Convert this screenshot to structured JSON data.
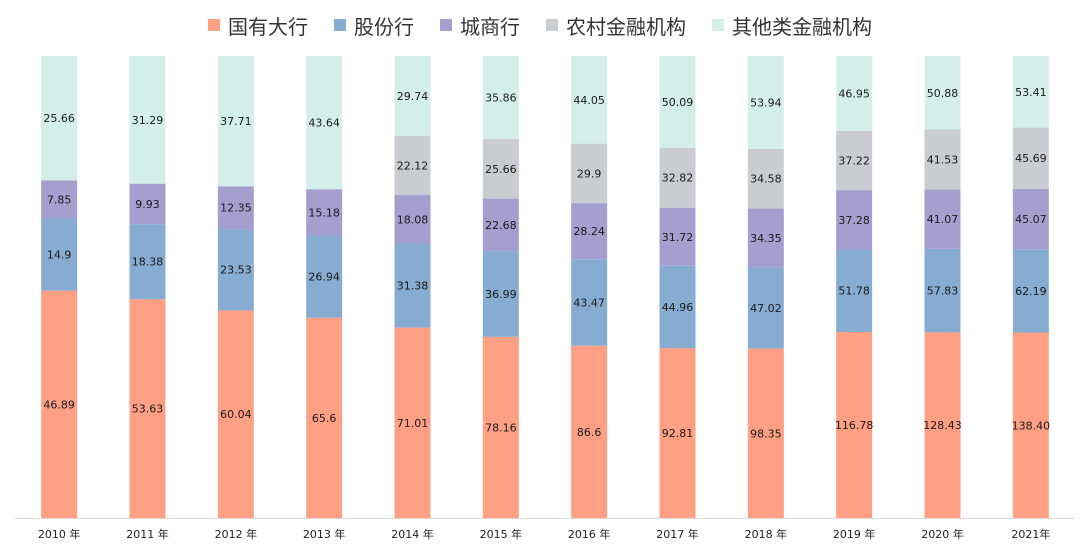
{
  "chart_data": {
    "type": "bar",
    "stacked": true,
    "legend_position": "top-center",
    "grid": false,
    "categories": [
      "2010 年",
      "2011 年",
      "2012 年",
      "2013 年",
      "2014 年",
      "2015 年",
      "2016 年",
      "2017 年",
      "2018 年",
      "2019 年",
      "2020 年",
      "2021年"
    ],
    "series": [
      {
        "name": "国有大行",
        "color": "#FF9F84",
        "values": [
          46.89,
          53.63,
          60.04,
          65.6,
          71.01,
          78.16,
          86.6,
          92.81,
          98.35,
          116.78,
          128.43,
          138.4
        ],
        "labels": [
          "46.89",
          "53.63",
          "60.04",
          "65.6",
          "71.01",
          "78.16",
          "86.6",
          "92.81",
          "98.35",
          "116.78",
          "128.43",
          "138.40"
        ]
      },
      {
        "name": "股份行",
        "color": "#86ACD2",
        "values": [
          14.9,
          18.38,
          23.53,
          26.94,
          31.38,
          36.99,
          43.47,
          44.96,
          47.02,
          51.78,
          57.83,
          62.19
        ],
        "labels": [
          "14.9",
          "18.38",
          "23.53",
          "26.94",
          "31.38",
          "36.99",
          "43.47",
          "44.96",
          "47.02",
          "51.78",
          "57.83",
          "62.19"
        ]
      },
      {
        "name": "城商行",
        "color": "#A59FCF",
        "values": [
          7.85,
          9.93,
          12.35,
          15.18,
          18.08,
          22.68,
          28.24,
          31.72,
          34.35,
          37.28,
          41.07,
          45.07
        ],
        "labels": [
          "7.85",
          "9.93",
          "12.35",
          "15.18",
          "18.08",
          "22.68",
          "28.24",
          "31.72",
          "34.35",
          "37.28",
          "41.07",
          "45.07"
        ]
      },
      {
        "name": "农村金融机构",
        "color": "#C9CCD1",
        "values": [
          0,
          0,
          0,
          0,
          22.12,
          25.66,
          29.9,
          32.82,
          34.58,
          37.22,
          41.53,
          45.69
        ],
        "labels": [
          "",
          "",
          "",
          "",
          "22.12",
          "25.66",
          "29.9",
          "32.82",
          "34.58",
          "37.22",
          "41.53",
          "45.69"
        ]
      },
      {
        "name": "其他类金融机构",
        "color": "#D4EFEA",
        "values": [
          25.66,
          31.29,
          37.71,
          43.64,
          29.74,
          35.86,
          44.05,
          50.09,
          53.94,
          46.95,
          50.88,
          53.41
        ],
        "labels": [
          "25.66",
          "31.29",
          "37.71",
          "43.64",
          "29.74",
          "35.86",
          "44.05",
          "50.09",
          "53.94",
          "46.95",
          "50.88",
          "53.41"
        ]
      }
    ]
  }
}
